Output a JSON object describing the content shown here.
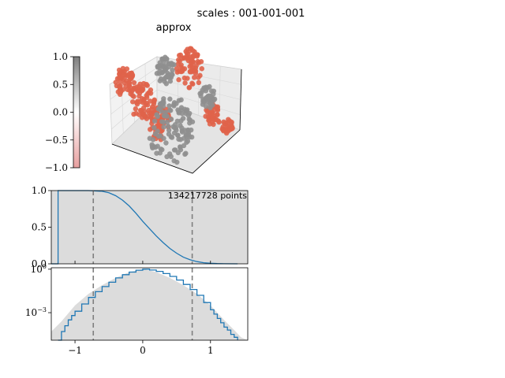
{
  "figure": {
    "suptitle": "scales : 001-001-001",
    "panel_title": "approx"
  },
  "colors": {
    "positive": "#e0634a",
    "negative": "#8f8f8f",
    "line": "#1f77b4",
    "fill": "#dcdcdc",
    "marker": "#7f7f7f"
  },
  "chart_data": [
    {
      "type": "scatter",
      "name": "approx-3d-scatter",
      "title": "approx",
      "projection": "3d",
      "colorbar": {
        "range": [
          -1.0,
          1.0
        ],
        "ticks": [
          "1.0",
          "0.5",
          "0.0",
          "−0.5",
          "−1.0"
        ],
        "colors": [
          "#7f7f7f",
          "#ffffff",
          "#e8a0a0"
        ]
      },
      "clusters": [
        {
          "color": "positive",
          "u": 0.05,
          "v": 0.25,
          "size": 18
        },
        {
          "color": "positive",
          "u": 0.2,
          "v": 0.45,
          "size": 22
        },
        {
          "color": "positive",
          "u": 0.35,
          "v": 0.68,
          "size": 20
        },
        {
          "color": "positive",
          "u": 0.6,
          "v": 0.1,
          "size": 24
        },
        {
          "color": "positive",
          "u": 0.8,
          "v": 0.6,
          "size": 14
        },
        {
          "color": "positive",
          "u": 0.92,
          "v": 0.72,
          "size": 10
        },
        {
          "color": "negative",
          "u": 0.4,
          "v": 0.12,
          "size": 16
        },
        {
          "color": "negative",
          "u": 0.75,
          "v": 0.4,
          "size": 14
        },
        {
          "color": "negative",
          "u": 0.45,
          "v": 0.75,
          "size": 40
        }
      ]
    },
    {
      "type": "line",
      "name": "cumulative-panel",
      "annotation": "134217728 points",
      "xlim": [
        -1.35,
        1.55
      ],
      "ylim": [
        0.0,
        1.0
      ],
      "yticks": [
        0.0,
        0.5,
        1.0
      ],
      "ytick_labels": [
        "0.0",
        "0.5",
        "1.0"
      ],
      "vlines": [
        -0.73,
        0.73
      ],
      "series": [
        {
          "style": "step",
          "x": [
            -1.35,
            -1.25,
            -1.25,
            -1.2,
            -1.0,
            -0.8,
            -0.6,
            -0.5,
            -0.4,
            -0.3,
            -0.2,
            -0.1,
            0.0,
            0.1,
            0.2,
            0.3,
            0.4,
            0.5,
            0.6,
            0.7,
            0.8,
            0.9,
            1.0,
            1.1,
            1.2,
            1.4
          ],
          "y": [
            0.0,
            0.0,
            1.0,
            1.0,
            1.0,
            1.0,
            0.99,
            0.97,
            0.93,
            0.87,
            0.79,
            0.69,
            0.58,
            0.48,
            0.38,
            0.29,
            0.21,
            0.145,
            0.09,
            0.055,
            0.03,
            0.015,
            0.007,
            0.003,
            0.001,
            0.0
          ]
        }
      ],
      "fill": {
        "x": [
          -1.35,
          1.55
        ],
        "y": [
          1.0,
          1.0
        ]
      }
    },
    {
      "type": "line",
      "name": "histogram-panel",
      "yscale": "log",
      "xlim": [
        -1.35,
        1.55
      ],
      "ylim_log10": [
        -4.9,
        0.1
      ],
      "yticks_log10": [
        0,
        -3
      ],
      "ytick_labels": [
        "10^0",
        "10^−3"
      ],
      "xticks": [
        -1,
        0,
        1
      ],
      "xtick_labels": [
        "−1",
        "0",
        "1"
      ],
      "vlines": [
        -0.73,
        0.73
      ],
      "fill": {
        "x": [
          -1.35,
          -1.2,
          -1.0,
          -0.8,
          -0.6,
          -0.4,
          -0.2,
          0.0,
          0.2,
          0.4,
          0.6,
          0.8,
          1.0,
          1.2,
          1.35,
          1.45,
          1.55
        ],
        "y_log10": [
          -4.3,
          -3.6,
          -2.5,
          -1.7,
          -1.1,
          -0.6,
          -0.2,
          0.0,
          -0.2,
          -0.6,
          -1.1,
          -1.7,
          -2.5,
          -3.5,
          -4.2,
          -4.7,
          -4.9
        ]
      },
      "series": [
        {
          "style": "step",
          "x": [
            -1.25,
            -1.2,
            -1.15,
            -1.1,
            -1.05,
            -1.0,
            -0.9,
            -0.8,
            -0.7,
            -0.6,
            -0.5,
            -0.4,
            -0.3,
            -0.2,
            -0.1,
            0.0,
            0.1,
            0.2,
            0.3,
            0.4,
            0.5,
            0.6,
            0.7,
            0.8,
            0.9,
            1.0,
            1.05,
            1.1,
            1.15,
            1.2,
            1.25,
            1.3,
            1.35,
            1.4
          ],
          "y_log10": [
            -4.9,
            -4.3,
            -3.9,
            -3.5,
            -3.2,
            -2.9,
            -2.4,
            -1.95,
            -1.55,
            -1.2,
            -0.9,
            -0.6,
            -0.38,
            -0.2,
            -0.07,
            0.0,
            -0.06,
            -0.15,
            -0.3,
            -0.5,
            -0.75,
            -1.05,
            -1.4,
            -1.8,
            -2.3,
            -2.8,
            -3.1,
            -3.4,
            -3.7,
            -4.0,
            -4.2,
            -4.5,
            -4.7,
            -4.9
          ]
        }
      ]
    }
  ]
}
